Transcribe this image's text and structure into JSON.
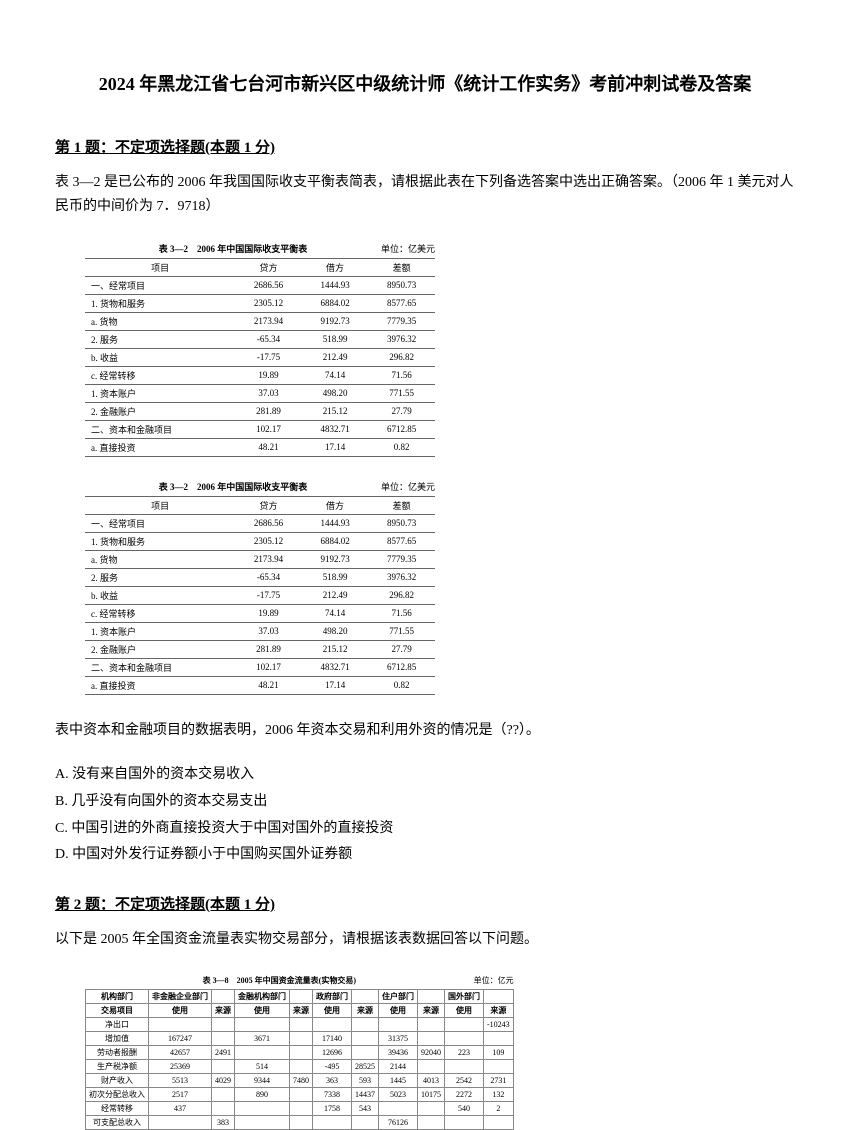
{
  "title": "2024 年黑龙江省七台河市新兴区中级统计师《统计工作实务》考前冲刺试卷及答案",
  "q1": {
    "heading": "第 1 题：不定项选择题(本题 1 分)",
    "text": "表 3—2 是已公布的 2006 年我国国际收支平衡表简表，请根据此表在下列备选答案中选出正确答案。（2006 年 1 美元对人民币的中间价为 7．9718）",
    "table": {
      "caption": "表 3—2　2006 年中国国际收支平衡表",
      "unit": "单位：亿美元",
      "headers": [
        "项目",
        "贷方",
        "借方",
        "差额"
      ],
      "rows": [
        [
          "一、经常项目",
          "2686.56",
          "1444.93",
          "8950.73"
        ],
        [
          "1. 货物和服务",
          "2305.12",
          "6884.02",
          "8577.65"
        ],
        [
          "a. 货物",
          "2173.94",
          "9192.73",
          "7779.35"
        ],
        [
          "2. 服务",
          "-65.34",
          "518.99",
          "3976.32"
        ],
        [
          "b. 收益",
          "-17.75",
          "212.49",
          "296.82"
        ],
        [
          "c. 经常转移",
          "19.89",
          "74.14",
          "71.56"
        ],
        [
          "1. 资本账户",
          "37.03",
          "498.20",
          "771.55"
        ],
        [
          "2. 金融账户",
          "281.89",
          "215.12",
          "27.79"
        ],
        [
          "二、资本和金融项目",
          "102.17",
          "4832.71",
          "6712.85"
        ],
        [
          "a. 直接投资",
          "48.21",
          "17.14",
          "0.82"
        ]
      ]
    },
    "prompt": "表中资本和金融项目的数据表明，2006 年资本交易和利用外资的情况是（??）。",
    "options": {
      "a": "A. 没有来自国外的资本交易收入",
      "b": "B. 几乎没有向国外的资本交易支出",
      "c": "C. 中国引进的外商直接投资大于中国对国外的直接投资",
      "d": "D. 中国对外发行证券额小于中国购买国外证券额"
    }
  },
  "q2": {
    "heading": "第 2 题：不定项选择题(本题 1 分)",
    "text": "以下是 2005 年全国资金流量表实物交易部分，请根据该表数据回答以下问题。",
    "table": {
      "caption": "表 3—8　2005 年中国资金流量表(实物交易)",
      "unit": "单位：亿元",
      "headers": [
        "机构部门",
        "非金融企业部门",
        "",
        "金融机构部门",
        "",
        "政府部门",
        "",
        "住户部门",
        "",
        "国外部门",
        ""
      ],
      "sub": [
        "交易项目",
        "使用",
        "来源",
        "使用",
        "来源",
        "使用",
        "来源",
        "使用",
        "来源",
        "使用",
        "来源"
      ],
      "rows": [
        [
          "净出口",
          "",
          "",
          "",
          "",
          "",
          "",
          "",
          "",
          "",
          "-10243"
        ],
        [
          "增加值",
          "167247",
          "",
          "3671",
          "",
          "17140",
          "",
          "31375",
          "",
          "",
          ""
        ],
        [
          "劳动者报酬",
          "42657",
          "2491",
          "",
          "",
          "12696",
          "",
          "39436",
          "92040",
          "223",
          "109"
        ],
        [
          "生产税净额",
          "25369",
          "",
          "514",
          "",
          "-495",
          "28525",
          "2144",
          "",
          "",
          ""
        ],
        [
          "财产收入",
          "5513",
          "4029",
          "9344",
          "7480",
          "363",
          "593",
          "1445",
          "4013",
          "2542",
          "2731"
        ],
        [
          "初次分配总收入",
          "2517",
          "",
          "890",
          "",
          "7338",
          "14437",
          "5023",
          "10175",
          "2272",
          "132"
        ],
        [
          "经常转移",
          "437",
          "",
          "",
          "",
          "1758",
          "543",
          "",
          "",
          "540",
          "2"
        ],
        [
          "可支配总收入",
          "",
          "383",
          "",
          "",
          "",
          "",
          "76126",
          "",
          "",
          ""
        ]
      ]
    }
  }
}
